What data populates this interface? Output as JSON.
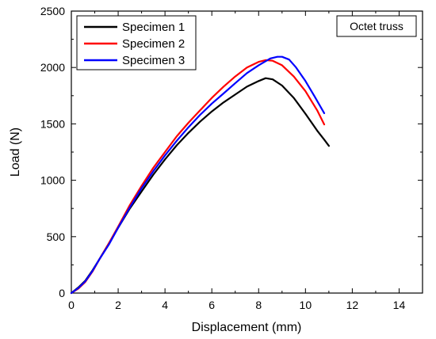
{
  "chart_data": {
    "type": "line",
    "xlabel": "Displacement (mm)",
    "ylabel": "Load (N)",
    "xlim": [
      0,
      15
    ],
    "ylim": [
      0,
      2500
    ],
    "xticks": [
      0,
      2,
      4,
      6,
      8,
      10,
      12,
      14
    ],
    "yticks": [
      0,
      500,
      1000,
      1500,
      2000,
      2500
    ],
    "annotation": "Octet truss",
    "legend_position": "top-left",
    "series": [
      {
        "name": "Specimen 1",
        "color": "#000000",
        "x": [
          0,
          0.3,
          0.6,
          0.9,
          1.2,
          1.6,
          2.0,
          2.5,
          3.0,
          3.5,
          4.0,
          4.5,
          5.0,
          5.5,
          6.0,
          6.5,
          7.0,
          7.5,
          8.0,
          8.3,
          8.6,
          9.0,
          9.5,
          10.0,
          10.5,
          10.8,
          11.0
        ],
        "y": [
          0,
          50,
          110,
          200,
          300,
          440,
          580,
          750,
          900,
          1050,
          1185,
          1310,
          1420,
          1520,
          1610,
          1690,
          1760,
          1830,
          1880,
          1905,
          1895,
          1840,
          1730,
          1590,
          1440,
          1360,
          1305
        ]
      },
      {
        "name": "Specimen 2",
        "color": "#ff0000",
        "x": [
          0,
          0.3,
          0.6,
          0.9,
          1.2,
          1.6,
          2.0,
          2.5,
          3.0,
          3.5,
          4.0,
          4.5,
          5.0,
          5.5,
          6.0,
          6.5,
          7.0,
          7.5,
          8.0,
          8.3,
          8.6,
          9.0,
          9.5,
          10.0,
          10.5,
          10.8
        ],
        "y": [
          0,
          40,
          100,
          190,
          300,
          440,
          590,
          780,
          950,
          1110,
          1250,
          1390,
          1510,
          1620,
          1730,
          1830,
          1920,
          2000,
          2050,
          2065,
          2060,
          2020,
          1920,
          1790,
          1620,
          1495
        ]
      },
      {
        "name": "Specimen 3",
        "color": "#0000ff",
        "x": [
          0,
          0.3,
          0.6,
          0.9,
          1.2,
          1.6,
          2.0,
          2.5,
          3.0,
          3.5,
          4.0,
          4.5,
          5.0,
          5.5,
          6.0,
          6.5,
          7.0,
          7.5,
          8.0,
          8.5,
          8.8,
          9.0,
          9.3,
          9.6,
          10.0,
          10.4,
          10.8
        ],
        "y": [
          0,
          45,
          105,
          195,
          300,
          430,
          580,
          760,
          930,
          1080,
          1220,
          1350,
          1470,
          1580,
          1680,
          1770,
          1860,
          1950,
          2020,
          2080,
          2095,
          2095,
          2070,
          2000,
          1880,
          1740,
          1595
        ]
      }
    ]
  }
}
